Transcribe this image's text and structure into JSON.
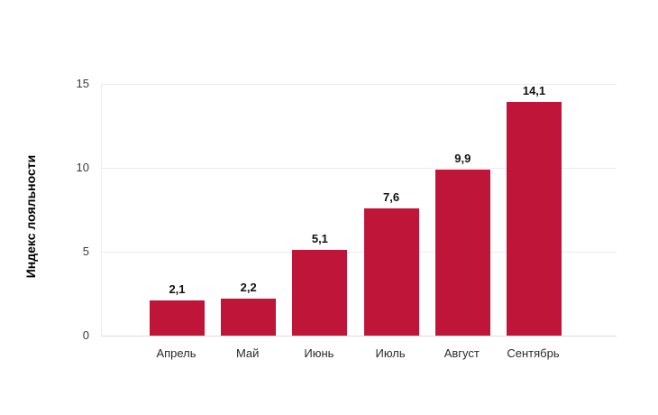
{
  "chart_data": {
    "type": "bar",
    "title": "",
    "xlabel": "",
    "ylabel": "Индекс лояльности",
    "categories": [
      "Апрель",
      "Май",
      "Июнь",
      "Июль",
      "Август",
      "Сентябрь"
    ],
    "values": [
      2.1,
      2.2,
      5.1,
      7.6,
      9.9,
      14.1
    ],
    "value_labels": [
      "2,1",
      "2,2",
      "5,1",
      "7,6",
      "9,9",
      "14,1"
    ],
    "ylim": [
      0,
      15
    ],
    "yticks": [
      0,
      5,
      10,
      15
    ],
    "grid": true,
    "legend": false
  },
  "colors": {
    "bar": "#be1538",
    "gridline": "#ececec",
    "baseline": "#dedede",
    "tick_label": "#3a3a3a",
    "category_label": "#2b2b2b",
    "value_label": "#111111",
    "background": "#ffffff"
  }
}
